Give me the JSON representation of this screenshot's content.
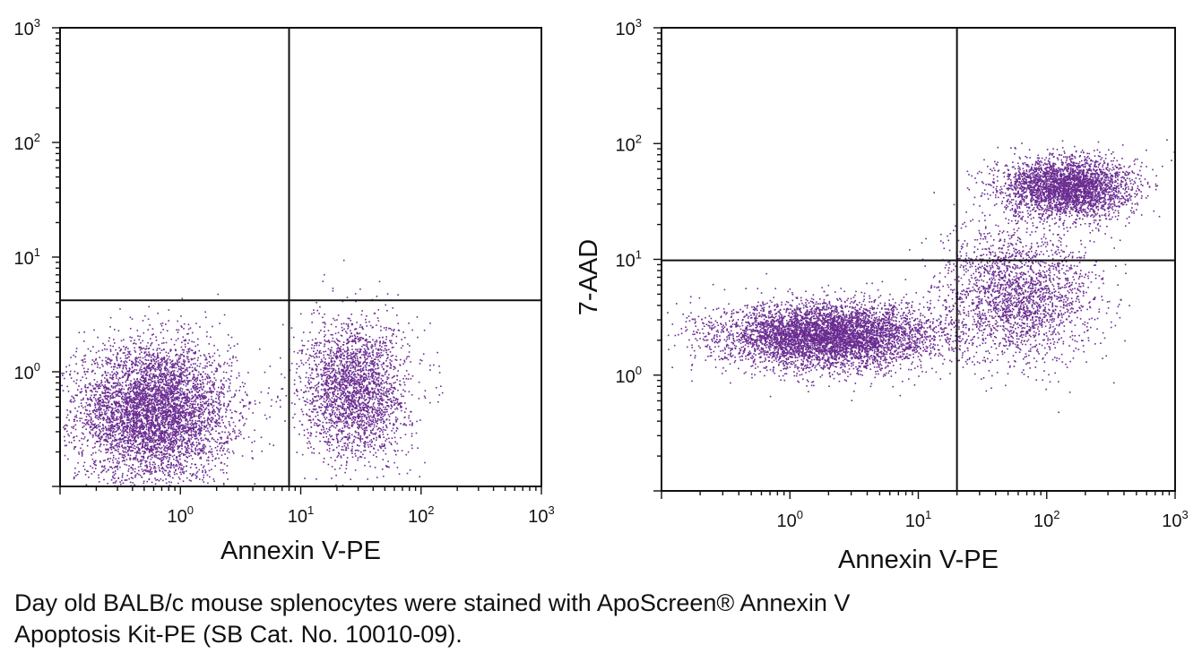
{
  "chart_data": [
    {
      "type": "scatter",
      "xlabel": "Annexin V-PE",
      "ylabel": "",
      "x_scale": "log",
      "y_scale": "log",
      "xlim": [
        0.1,
        1000
      ],
      "ylim": [
        0.1,
        1000
      ],
      "x_ticks": [
        {
          "base": "10",
          "exp": "0",
          "value": 1
        },
        {
          "base": "10",
          "exp": "1",
          "value": 10
        },
        {
          "base": "10",
          "exp": "2",
          "value": 100
        },
        {
          "base": "10",
          "exp": "3",
          "value": 1000
        }
      ],
      "y_ticks": [
        {
          "base": "10",
          "exp": "0",
          "value": 1
        },
        {
          "base": "10",
          "exp": "1",
          "value": 10
        },
        {
          "base": "10",
          "exp": "2",
          "value": 100
        },
        {
          "base": "10",
          "exp": "3",
          "value": 1000
        }
      ],
      "quadrant_gate": {
        "x": 8,
        "y": 4.2
      },
      "point_color": "#6a2c91",
      "populations": [
        {
          "description": "live cells",
          "x_center": 0.6,
          "y_center": 0.45,
          "x_spread_decades": 0.32,
          "y_spread_decades": 0.3,
          "count": 5200
        },
        {
          "description": "early apoptotic",
          "x_center": 28,
          "y_center": 0.7,
          "x_spread_decades": 0.22,
          "y_spread_decades": 0.3,
          "count": 2500
        }
      ],
      "grid": false
    },
    {
      "type": "scatter",
      "xlabel": "Annexin V-PE",
      "ylabel": "7-AAD",
      "x_scale": "log",
      "y_scale": "log",
      "xlim": [
        0.1,
        1000
      ],
      "ylim": [
        0.1,
        1000
      ],
      "x_ticks": [
        {
          "base": "10",
          "exp": "0",
          "value": 1
        },
        {
          "base": "10",
          "exp": "1",
          "value": 10
        },
        {
          "base": "10",
          "exp": "2",
          "value": 100
        },
        {
          "base": "10",
          "exp": "3",
          "value": 1000
        }
      ],
      "y_ticks": [
        {
          "base": "10",
          "exp": "0",
          "value": 1
        },
        {
          "base": "10",
          "exp": "1",
          "value": 10
        },
        {
          "base": "10",
          "exp": "2",
          "value": 100
        },
        {
          "base": "10",
          "exp": "3",
          "value": 1000
        }
      ],
      "quadrant_gate": {
        "x": 20,
        "y": 9.8
      },
      "point_color": "#6a2c91",
      "populations": [
        {
          "description": "live cells",
          "x_center": 2.0,
          "y_center": 2.2,
          "x_spread_decades": 0.42,
          "y_spread_decades": 0.14,
          "count": 5500
        },
        {
          "description": "early apoptotic",
          "x_center": 60,
          "y_center": 5,
          "x_spread_decades": 0.3,
          "y_spread_decades": 0.28,
          "count": 2200
        },
        {
          "description": "late apoptotic / necrotic",
          "x_center": 140,
          "y_center": 42,
          "x_spread_decades": 0.25,
          "y_spread_decades": 0.13,
          "count": 3200
        }
      ],
      "grid": false
    }
  ],
  "caption": {
    "line1": "Day old BALB/c mouse splenocytes were stained with ApoScreen® Annexin V",
    "line2": "Apoptosis Kit-PE (SB Cat. No. 10010-09)."
  }
}
